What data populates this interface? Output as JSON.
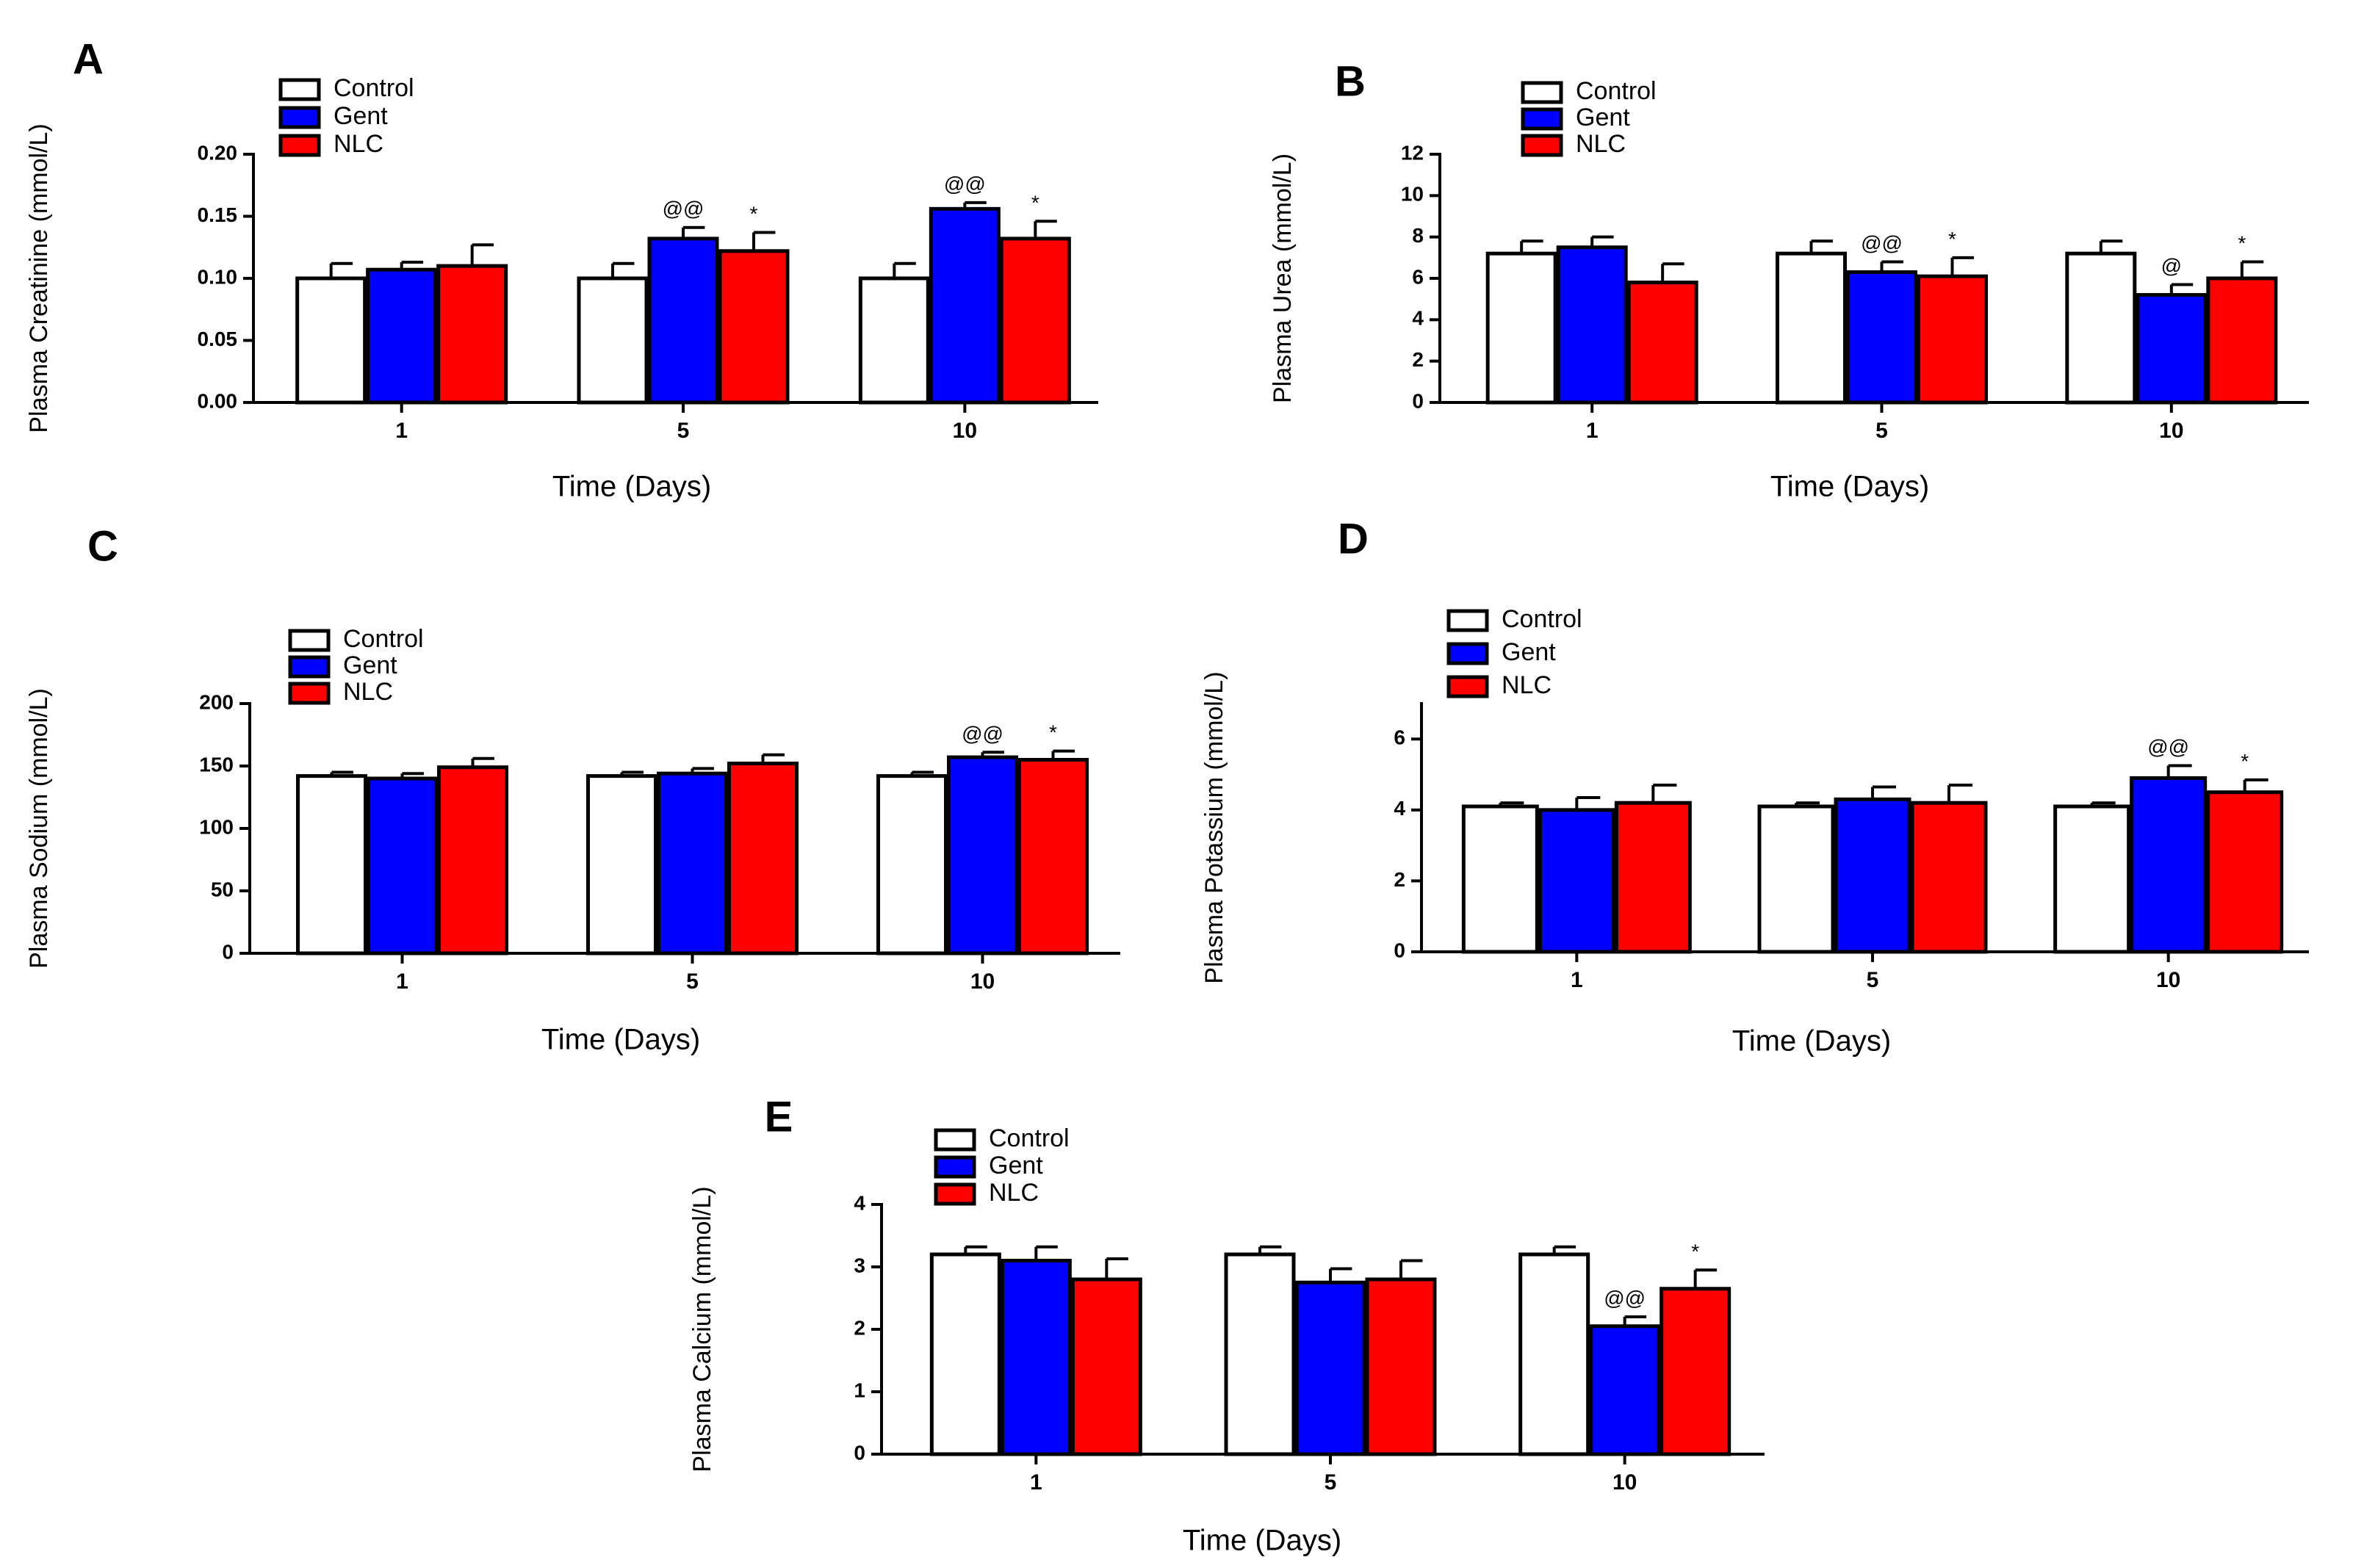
{
  "chart_data": [
    {
      "type": "bar",
      "panel": "A",
      "title": "",
      "ylabel": "Plasma Creatinine (mmol/L)",
      "xlabel": "Time (Days)",
      "categories": [
        "1",
        "5",
        "10"
      ],
      "ylim": [
        0,
        0.2
      ],
      "yticks": [
        0,
        0.05,
        0.1,
        0.15,
        0.2
      ],
      "ytick_labels": [
        "0.00",
        "0.05",
        "0.10",
        "0.15",
        "0.20"
      ],
      "legend": [
        "Control",
        "Gent",
        "NLC"
      ],
      "legend_position": "top-left",
      "series": [
        {
          "name": "Control",
          "color": "#ffffff",
          "values": [
            0.1,
            0.1,
            0.1
          ],
          "errors": [
            0.012,
            0.012,
            0.012
          ],
          "labels": [
            "",
            "",
            ""
          ]
        },
        {
          "name": "Gent",
          "color": "#0000ff",
          "values": [
            0.107,
            0.132,
            0.156
          ],
          "errors": [
            0.006,
            0.009,
            0.005
          ],
          "labels": [
            "",
            "@@",
            "@@"
          ]
        },
        {
          "name": "NLC",
          "color": "#ff0000",
          "values": [
            0.11,
            0.122,
            0.132
          ],
          "errors": [
            0.017,
            0.015,
            0.014
          ],
          "labels": [
            "",
            "*",
            "*"
          ]
        }
      ]
    },
    {
      "type": "bar",
      "panel": "B",
      "title": "",
      "ylabel": "Plasma Urea (mmol/L)",
      "xlabel": "Time (Days)",
      "categories": [
        "1",
        "5",
        "10"
      ],
      "ylim": [
        0,
        12
      ],
      "yticks": [
        0,
        2,
        4,
        6,
        8,
        10,
        12
      ],
      "ytick_labels": [
        "0",
        "2",
        "4",
        "6",
        "8",
        "10",
        "12"
      ],
      "legend": [
        "Control",
        "Gent",
        "NLC"
      ],
      "legend_position": "top-left",
      "series": [
        {
          "name": "Control",
          "color": "#ffffff",
          "values": [
            7.2,
            7.2,
            7.2
          ],
          "errors": [
            0.6,
            0.6,
            0.6
          ],
          "labels": [
            "",
            "",
            ""
          ]
        },
        {
          "name": "Gent",
          "color": "#0000ff",
          "values": [
            7.5,
            6.3,
            5.2
          ],
          "errors": [
            0.5,
            0.5,
            0.5
          ],
          "labels": [
            "",
            "@@",
            "@"
          ]
        },
        {
          "name": "NLC",
          "color": "#ff0000",
          "values": [
            5.8,
            6.1,
            6.0
          ],
          "errors": [
            0.9,
            0.9,
            0.8
          ],
          "labels": [
            "",
            "*",
            "*"
          ]
        }
      ]
    },
    {
      "type": "bar",
      "panel": "C",
      "title": "",
      "ylabel": "Plasma Sodium (mmol/L)",
      "xlabel": "Time (Days)",
      "categories": [
        "1",
        "5",
        "10"
      ],
      "ylim": [
        0,
        200
      ],
      "yticks": [
        0,
        50,
        100,
        150,
        200
      ],
      "ytick_labels": [
        "0",
        "50",
        "100",
        "150",
        "200"
      ],
      "legend": [
        "Control",
        "Gent",
        "NLC"
      ],
      "legend_position": "top-left",
      "series": [
        {
          "name": "Control",
          "color": "#ffffff",
          "values": [
            142,
            142,
            142
          ],
          "errors": [
            3,
            3,
            3
          ],
          "labels": [
            "",
            "",
            ""
          ]
        },
        {
          "name": "Gent",
          "color": "#0000ff",
          "values": [
            140,
            144,
            157
          ],
          "errors": [
            4,
            4,
            4
          ],
          "labels": [
            "",
            "",
            "@@"
          ]
        },
        {
          "name": "NLC",
          "color": "#ff0000",
          "values": [
            149,
            152,
            155
          ],
          "errors": [
            7,
            7,
            7
          ],
          "labels": [
            "",
            "",
            "*"
          ]
        }
      ]
    },
    {
      "type": "bar",
      "panel": "D",
      "title": "",
      "ylabel": "Plasma Potassium (mmol/L)",
      "xlabel": "Time (Days)",
      "categories": [
        "1",
        "5",
        "10"
      ],
      "ylim": [
        0,
        7
      ],
      "yticks": [
        0,
        2,
        4,
        6
      ],
      "ytick_labels": [
        "0",
        "2",
        "4",
        "6"
      ],
      "legend": [
        "Control",
        "Gent",
        "NLC"
      ],
      "legend_position": "top-left",
      "series": [
        {
          "name": "Control",
          "color": "#ffffff",
          "values": [
            4.1,
            4.1,
            4.1
          ],
          "errors": [
            0.1,
            0.1,
            0.1
          ],
          "labels": [
            "",
            "",
            ""
          ]
        },
        {
          "name": "Gent",
          "color": "#0000ff",
          "values": [
            4.0,
            4.3,
            4.9
          ],
          "errors": [
            0.35,
            0.35,
            0.35
          ],
          "labels": [
            "",
            "",
            "@@"
          ]
        },
        {
          "name": "NLC",
          "color": "#ff0000",
          "values": [
            4.2,
            4.2,
            4.5
          ],
          "errors": [
            0.5,
            0.5,
            0.35
          ],
          "labels": [
            "",
            "",
            "*"
          ]
        }
      ]
    },
    {
      "type": "bar",
      "panel": "E",
      "title": "",
      "ylabel": "Plasma Calcium (mmol/L)",
      "xlabel": "Time (Days)",
      "categories": [
        "1",
        "5",
        "10"
      ],
      "ylim": [
        0,
        4
      ],
      "yticks": [
        0,
        1,
        2,
        3,
        4
      ],
      "ytick_labels": [
        "0",
        "1",
        "2",
        "3",
        "4"
      ],
      "legend": [
        "Control",
        "Gent",
        "NLC"
      ],
      "legend_position": "top-left",
      "series": [
        {
          "name": "Control",
          "color": "#ffffff",
          "values": [
            3.2,
            3.2,
            3.2
          ],
          "errors": [
            0.12,
            0.12,
            0.12
          ],
          "labels": [
            "",
            "",
            ""
          ]
        },
        {
          "name": "Gent",
          "color": "#0000ff",
          "values": [
            3.1,
            2.75,
            2.05
          ],
          "errors": [
            0.22,
            0.22,
            0.15
          ],
          "labels": [
            "",
            "",
            "@@"
          ]
        },
        {
          "name": "NLC",
          "color": "#ff0000",
          "values": [
            2.8,
            2.8,
            2.65
          ],
          "errors": [
            0.33,
            0.3,
            0.3
          ],
          "labels": [
            "",
            "",
            "*"
          ]
        }
      ]
    }
  ]
}
